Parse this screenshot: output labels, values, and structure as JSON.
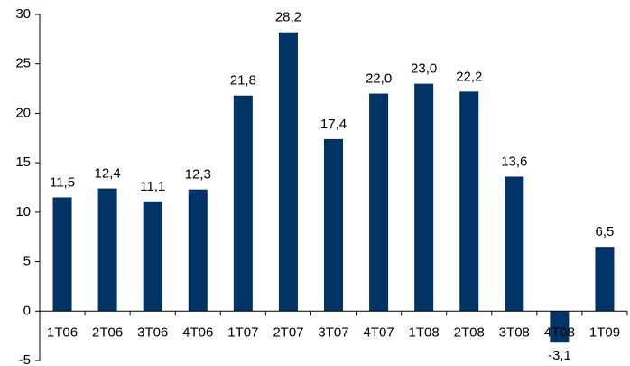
{
  "chart_data": {
    "type": "bar",
    "categories": [
      "1T06",
      "2T06",
      "3T06",
      "4T06",
      "1T07",
      "2T07",
      "3T07",
      "4T07",
      "1T08",
      "2T08",
      "3T08",
      "4T08",
      "1T09"
    ],
    "values": [
      11.5,
      12.4,
      11.1,
      12.3,
      21.8,
      28.2,
      17.4,
      22.0,
      23.0,
      22.2,
      13.6,
      -3.1,
      6.5
    ],
    "value_labels": [
      "11,5",
      "12,4",
      "11,1",
      "12,3",
      "21,8",
      "28,2",
      "17,4",
      "22,0",
      "23,0",
      "22,2",
      "13,6",
      "-3,1",
      "6,5"
    ],
    "ylim": [
      -5,
      30
    ],
    "yticks": [
      -5,
      0,
      5,
      10,
      15,
      20,
      25,
      30
    ],
    "ytick_labels": [
      "-5",
      "0",
      "5",
      "10",
      "15",
      "20",
      "25",
      "30"
    ],
    "grid": false,
    "legend": "none",
    "title": "",
    "xlabel": "",
    "ylabel": "",
    "colors": {
      "bar": "#003366",
      "axis": "#000000",
      "text": "#000000"
    }
  }
}
